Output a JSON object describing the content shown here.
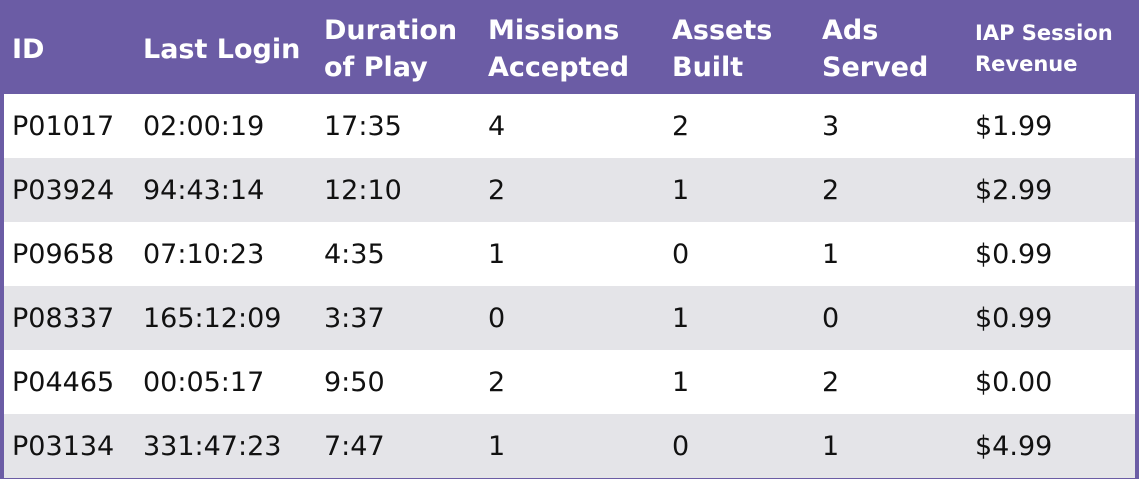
{
  "colors": {
    "header_background": "#6b5ca5",
    "header_text": "#ffffff",
    "border": "#6b5ca5",
    "row_stripe": "#e4e4e8",
    "row_plain": "#ffffff"
  },
  "chart_data": {
    "type": "table",
    "columns": [
      {
        "lines": [
          "ID"
        ]
      },
      {
        "lines": [
          "Last Login"
        ]
      },
      {
        "lines": [
          "Duration",
          "of Play"
        ]
      },
      {
        "lines": [
          "Missions",
          "Accepted"
        ]
      },
      {
        "lines": [
          "Assets",
          "Built"
        ]
      },
      {
        "lines": [
          "Ads",
          "Served"
        ]
      },
      {
        "lines": [
          "IAP Session",
          "Revenue"
        ]
      }
    ],
    "rows": [
      [
        "P01017",
        "02:00:19",
        "17:35",
        "4",
        "2",
        "3",
        "$1.99"
      ],
      [
        "P03924",
        "94:43:14",
        "12:10",
        "2",
        "1",
        "2",
        "$2.99"
      ],
      [
        "P09658",
        "07:10:23",
        "4:35",
        "1",
        "0",
        "1",
        "$0.99"
      ],
      [
        "P08337",
        "165:12:09",
        "3:37",
        "0",
        "1",
        "0",
        "$0.99"
      ],
      [
        "P04465",
        "00:05:17",
        "9:50",
        "2",
        "1",
        "2",
        "$0.00"
      ],
      [
        "P03134",
        "331:47:23",
        "7:47",
        "1",
        "0",
        "1",
        "$4.99"
      ]
    ]
  }
}
